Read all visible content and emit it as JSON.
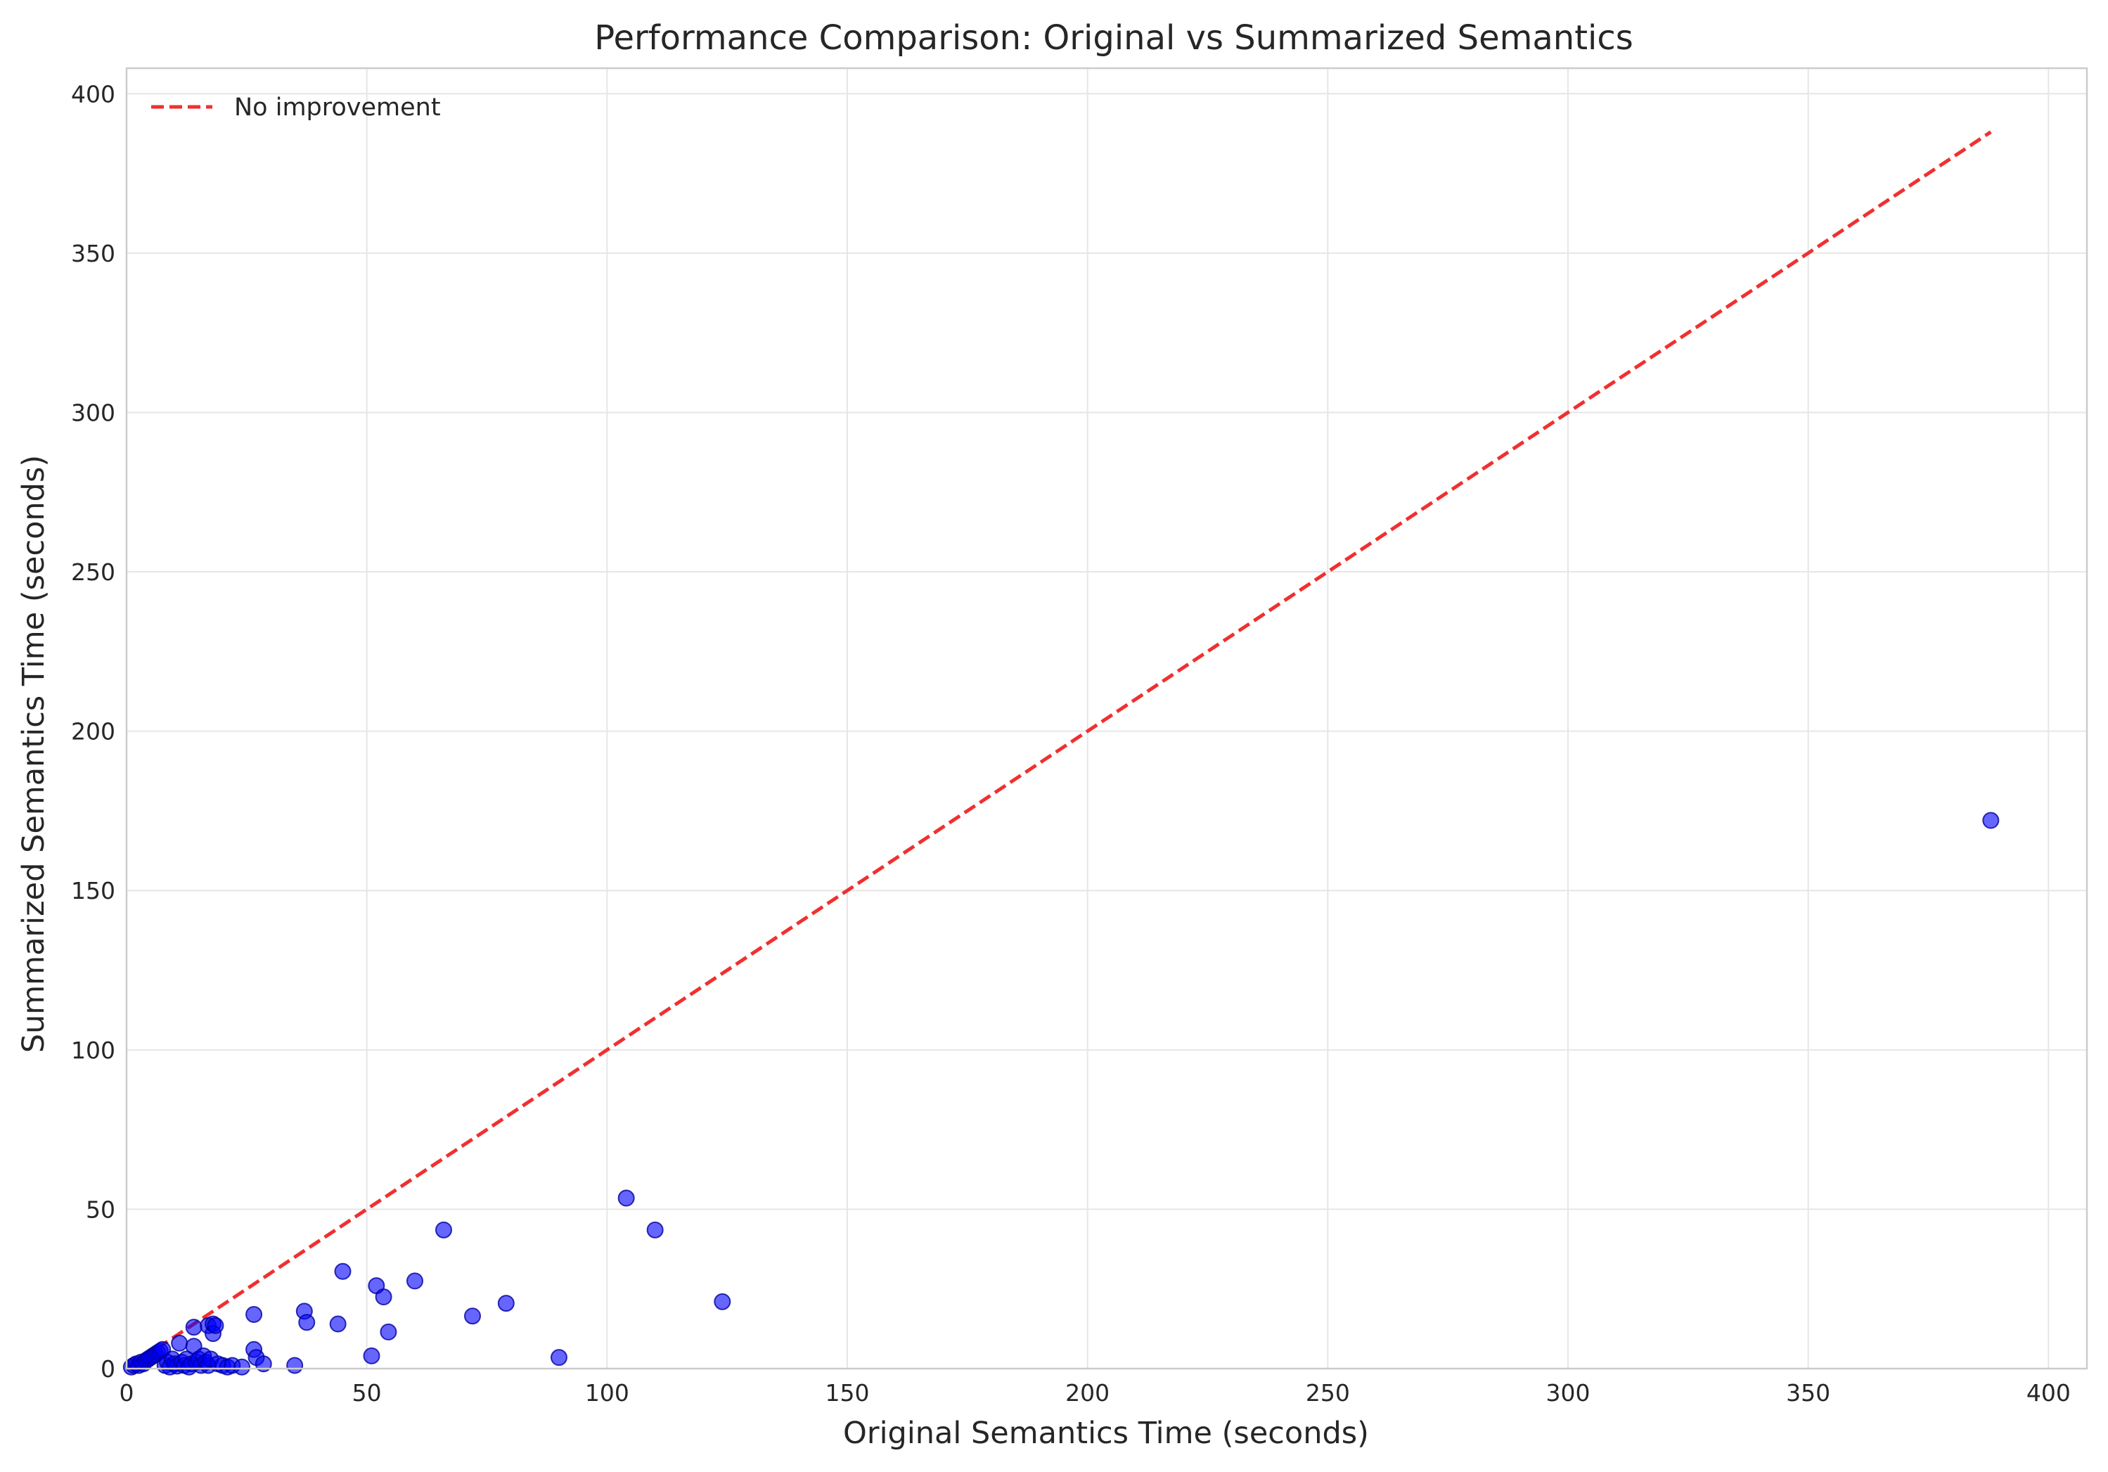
{
  "chart_data": {
    "type": "scatter",
    "title": "Performance Comparison: Original vs Summarized Semantics",
    "xlabel": "Original Semantics Time (seconds)",
    "ylabel": "Summarized Semantics Time (seconds)",
    "xlim": [
      0,
      408
    ],
    "ylim": [
      0,
      408
    ],
    "xticks": [
      0,
      50,
      100,
      150,
      200,
      250,
      300,
      350,
      400
    ],
    "yticks": [
      0,
      50,
      100,
      150,
      200,
      250,
      300,
      350,
      400
    ],
    "grid": true,
    "legend_position": "top-left",
    "colors": {
      "points": "#0000ff",
      "reference_line": "#f03030"
    },
    "reference_line": {
      "name": "No improvement",
      "style": "dashed",
      "x": [
        0,
        388
      ],
      "y": [
        0,
        388
      ]
    },
    "series": [
      {
        "points": [
          [
            1,
            0.5
          ],
          [
            1.5,
            1
          ],
          [
            2,
            1.5
          ],
          [
            2.5,
            1
          ],
          [
            3,
            2
          ],
          [
            3.5,
            1.5
          ],
          [
            4,
            2.5
          ],
          [
            4.5,
            3
          ],
          [
            5,
            3.5
          ],
          [
            5.5,
            4
          ],
          [
            6,
            4.5
          ],
          [
            6.5,
            5
          ],
          [
            7,
            5.5
          ],
          [
            7.5,
            6
          ],
          [
            8,
            1
          ],
          [
            8.5,
            2
          ],
          [
            9,
            0.5
          ],
          [
            9.5,
            3
          ],
          [
            10,
            1.5
          ],
          [
            10.5,
            0.8
          ],
          [
            11,
            8
          ],
          [
            11.5,
            2
          ],
          [
            12,
            1
          ],
          [
            12.5,
            3
          ],
          [
            13,
            0.5
          ],
          [
            13.5,
            1.5
          ],
          [
            14,
            13
          ],
          [
            14,
            7
          ],
          [
            14.5,
            2
          ],
          [
            15,
            3
          ],
          [
            15.5,
            1
          ],
          [
            16,
            4
          ],
          [
            16.5,
            2
          ],
          [
            17,
            1
          ],
          [
            17,
            13.5
          ],
          [
            17.5,
            3
          ],
          [
            18,
            14
          ],
          [
            18,
            11
          ],
          [
            18.5,
            13.5
          ],
          [
            19,
            1.5
          ],
          [
            20,
            1
          ],
          [
            21,
            0.5
          ],
          [
            22,
            1
          ],
          [
            24,
            0.5
          ],
          [
            26.5,
            17
          ],
          [
            26.5,
            6
          ],
          [
            27,
            3.5
          ],
          [
            28.5,
            1.5
          ],
          [
            35,
            1
          ],
          [
            37,
            18
          ],
          [
            37.5,
            14.5
          ],
          [
            44,
            14
          ],
          [
            45,
            30.5
          ],
          [
            51,
            4
          ],
          [
            52,
            26
          ],
          [
            53.5,
            22.5
          ],
          [
            54.5,
            11.5
          ],
          [
            60,
            27.5
          ],
          [
            66,
            43.5
          ],
          [
            72,
            16.5
          ],
          [
            79,
            20.5
          ],
          [
            90,
            3.5
          ],
          [
            104,
            53.5
          ],
          [
            110,
            43.5
          ],
          [
            124,
            21
          ],
          [
            388,
            172
          ]
        ]
      }
    ]
  }
}
